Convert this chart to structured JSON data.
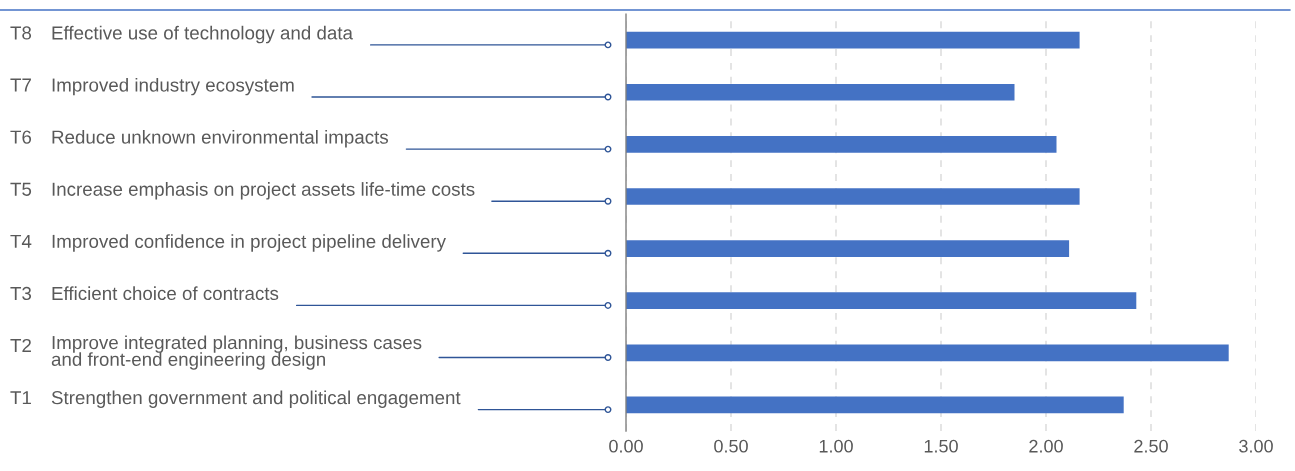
{
  "chart_data": {
    "type": "bar",
    "orientation": "horizontal",
    "categories": [
      "T8 Effective use of technology and data",
      "T7 Improved industry ecosystem",
      "T6 Reduce unknown environmental impacts",
      "T5 Increase emphasis on project assets life-time costs",
      "T4 Improved confidence in project pipeline delivery",
      "T3 Efficient choice of contracts",
      "T2 Improve integrated planning, business cases\nand front-end engineering design",
      "T1 Strengthen government and political engagement"
    ],
    "values": [
      2.16,
      1.85,
      2.05,
      2.16,
      2.11,
      2.43,
      2.87,
      2.37
    ],
    "color": "#4472c4",
    "xlim": [
      0,
      3
    ],
    "xticks": [
      {
        "value": 0,
        "label": "0.00"
      },
      {
        "value": 0.5,
        "label": "0.50"
      },
      {
        "value": 1,
        "label": "1.00"
      },
      {
        "value": 1.5,
        "label": "1.50"
      },
      {
        "value": 2,
        "label": "2.00"
      },
      {
        "value": 2.5,
        "label": "2.50"
      },
      {
        "value": 3,
        "label": "3.00"
      }
    ],
    "grid": "x"
  }
}
